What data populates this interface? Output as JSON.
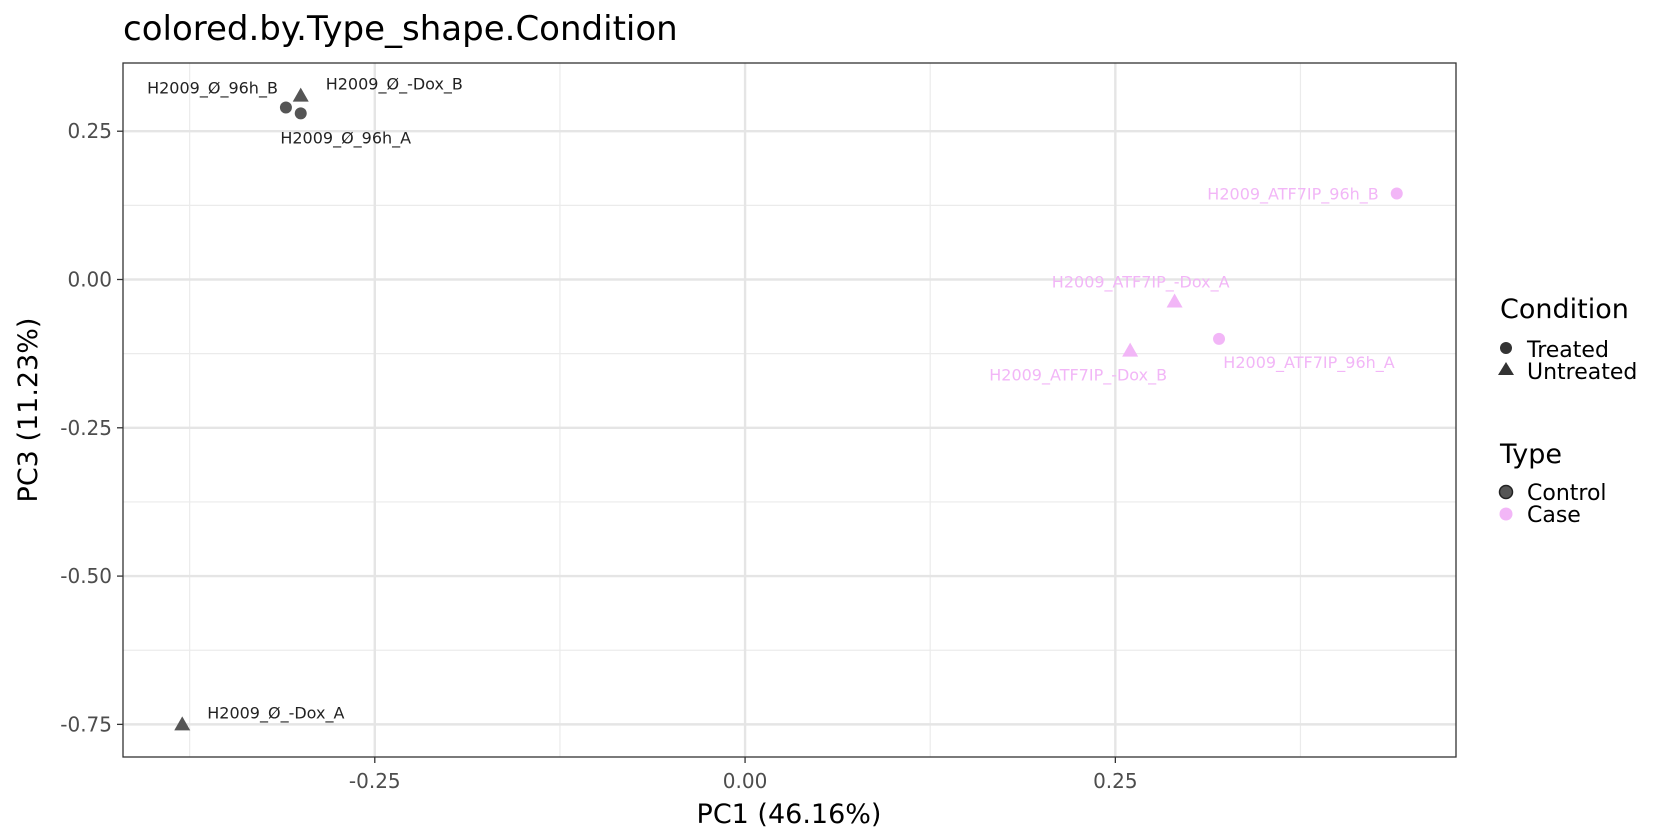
{
  "chart_data": {
    "type": "scatter",
    "title": "colored.by.Type_shape.Condition",
    "xlabel": "PC1 (46.16%)",
    "ylabel": "PC3 (11.23%)",
    "xlim": [
      -0.42,
      0.48
    ],
    "ylim": [
      -0.805,
      0.365
    ],
    "x_ticks": [
      -0.25,
      0.0,
      0.25
    ],
    "x_tick_labels": [
      "-0.25",
      "0.00",
      "0.25"
    ],
    "x_minor": [
      -0.375,
      -0.125,
      0.125,
      0.375
    ],
    "y_ticks": [
      0.25,
      0.0,
      -0.25,
      -0.5,
      -0.75
    ],
    "y_tick_labels": [
      "0.25",
      "0.00",
      "-0.25",
      "-0.50",
      "-0.75"
    ],
    "y_minor": [
      0.125,
      -0.125,
      -0.375,
      -0.625
    ],
    "grid": true,
    "colors": {
      "Control": "#555555",
      "Case": "#f2b6f7"
    },
    "points": [
      {
        "label": "H2009_Ø_96h_B",
        "x": -0.31,
        "y": 0.29,
        "type": "Control",
        "condition": "Treated",
        "label_pos": "upper-left"
      },
      {
        "label": "H2009_Ø_-Dox_B",
        "x": -0.3,
        "y": 0.31,
        "type": "Control",
        "condition": "Untreated",
        "label_pos": "right"
      },
      {
        "label": "H2009_Ø_96h_A",
        "x": -0.3,
        "y": 0.28,
        "type": "Control",
        "condition": "Treated",
        "label_pos": "below"
      },
      {
        "label": "H2009_Ø_-Dox_A",
        "x": -0.38,
        "y": -0.75,
        "type": "Control",
        "condition": "Untreated",
        "label_pos": "right"
      },
      {
        "label": "H2009_ATF7IP_96h_B",
        "x": 0.44,
        "y": 0.145,
        "type": "Case",
        "condition": "Treated",
        "label_pos": "left"
      },
      {
        "label": "H2009_ATF7IP_-Dox_A",
        "x": 0.29,
        "y": -0.037,
        "type": "Case",
        "condition": "Untreated",
        "label_pos": "upper-left"
      },
      {
        "label": "H2009_ATF7IP_96h_A",
        "x": 0.32,
        "y": -0.1,
        "type": "Case",
        "condition": "Treated",
        "label_pos": "below-right"
      },
      {
        "label": "H2009_ATF7IP_-Dox_B",
        "x": 0.26,
        "y": -0.12,
        "type": "Case",
        "condition": "Untreated",
        "label_pos": "below-left"
      }
    ],
    "legend": {
      "position": "right",
      "condition": {
        "title": "Condition",
        "items": [
          {
            "label": "Treated",
            "shape": "circle"
          },
          {
            "label": "Untreated",
            "shape": "triangle"
          }
        ]
      },
      "type": {
        "title": "Type",
        "items": [
          {
            "label": "Control",
            "color": "#555555"
          },
          {
            "label": "Case",
            "color": "#f2b6f7"
          }
        ]
      }
    }
  }
}
